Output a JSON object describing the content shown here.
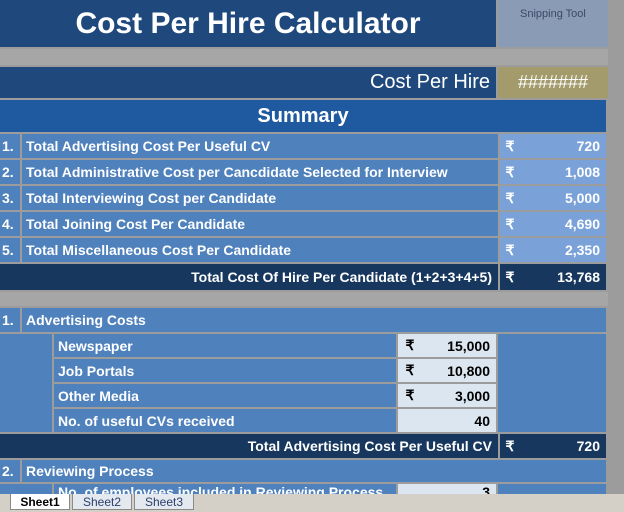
{
  "header": {
    "title": "Cost Per Hire Calculator",
    "snipping_tool": "Snipping Tool"
  },
  "currency": "₹",
  "cost_per_hire": {
    "label": "Cost Per Hire",
    "value": "#######"
  },
  "summary": {
    "title": "Summary",
    "rows": [
      {
        "number": "1.",
        "label": "Total Advertising Cost Per Useful CV",
        "value": "720"
      },
      {
        "number": "2.",
        "label": "Total Administrative Cost per Cancdidate Selected for Interview",
        "value": "1,008"
      },
      {
        "number": "3.",
        "label": "Total Interviewing Cost per Candidate",
        "value": "5,000"
      },
      {
        "number": "4.",
        "label": "Total Joining Cost Per Candidate",
        "value": "4,690"
      },
      {
        "number": "5.",
        "label": "Total Miscellaneous Cost Per Candidate",
        "value": "2,350"
      }
    ],
    "total": {
      "label": "Total Cost Of Hire Per Candidate (1+2+3+4+5)",
      "value": "13,768"
    }
  },
  "advertising": {
    "number": "1.",
    "title": "Advertising Costs",
    "rows": [
      {
        "label": "Newspaper",
        "value": "15,000"
      },
      {
        "label": "Job Portals",
        "value": "10,800"
      },
      {
        "label": "Other Media",
        "value": "3,000"
      },
      {
        "label": "No. of useful CVs received",
        "value": "40"
      }
    ],
    "total": {
      "label": "Total Advertising Cost Per Useful CV",
      "value": "720"
    }
  },
  "reviewing": {
    "number": "2.",
    "title": "Reviewing Process",
    "rows": [
      {
        "label": "No. of employees included in Reviewing Process",
        "value": "3"
      }
    ]
  },
  "tabs": [
    "Sheet1",
    "Sheet2",
    "Sheet3"
  ]
}
